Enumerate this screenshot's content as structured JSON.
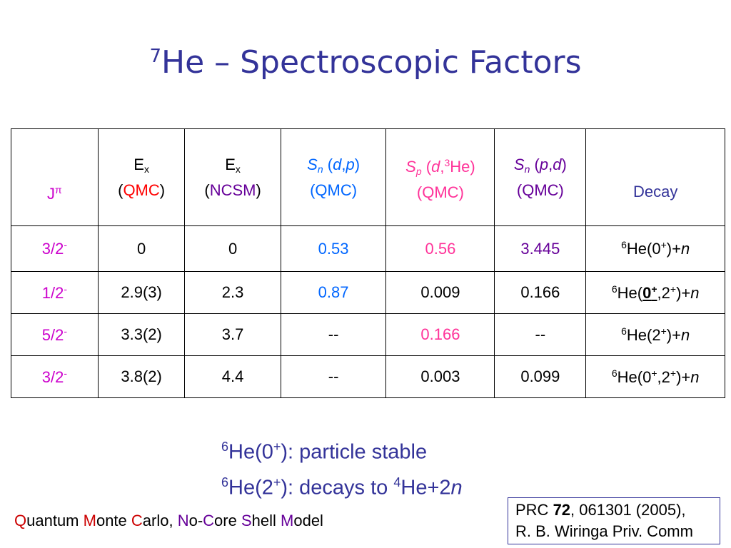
{
  "title": {
    "sup": "7",
    "text": "He – Spectroscopic Factors"
  },
  "table": {
    "header": {
      "j": "J",
      "pi": "π",
      "ex_qmc": {
        "e": "E",
        "x": "x",
        "lp": "(",
        "label": "QMC",
        "rp": ")"
      },
      "ex_ncsm": {
        "e": "E",
        "x": "x",
        "lp": "(",
        "label": "NCSM",
        "rp": ")"
      },
      "sn_dp": {
        "s": "S",
        "n": "n",
        "lp": " (",
        "d": "d",
        "comma": ",",
        "p": "p",
        "rp": ")",
        "line2": "(QMC)"
      },
      "sp_d3he": {
        "s": "S",
        "p": "p",
        "lp": " (",
        "d": "d",
        "comma": ",",
        "three": "3",
        "he": "He)",
        "line2": "(QMC)"
      },
      "sn_pd": {
        "s": "S",
        "n": "n",
        "lp": " (",
        "p": "p",
        "comma": ",",
        "d": "d",
        "rp": ")",
        "line2": "(QMC)"
      },
      "decay": "Decay"
    },
    "rows": [
      {
        "j": "3/2",
        "sign": "-",
        "ex_qmc": "0",
        "ex_ncsm": "0",
        "sn_dp": "0.53",
        "sp": "0.56",
        "sn_pd": "3.445",
        "decay": {
          "mass": "6",
          "he": "He(0",
          "sup": "+",
          "rest": ")+",
          "n": "n"
        }
      },
      {
        "j": "1/2",
        "sign": "-",
        "ex_qmc": "2.9(3)",
        "ex_ncsm": "2.3",
        "sn_dp": "0.87",
        "sp": "0.009",
        "sn_pd": "0.166",
        "decay": {
          "mass": "6",
          "he": "He(",
          "bold": "0",
          "boldsup": "+",
          "mid": ",2",
          "sup": "+",
          "rest": ")+",
          "n": "n"
        }
      },
      {
        "j": "5/2",
        "sign": "-",
        "ex_qmc": "3.3(2)",
        "ex_ncsm": "3.7",
        "sn_dp": "--",
        "sp": "0.166",
        "sn_pd": "--",
        "decay": {
          "mass": "6",
          "he": "He(2",
          "sup": "+",
          "rest": ")+",
          "n": "n"
        }
      },
      {
        "j": "3/2",
        "sign": "-",
        "ex_qmc": "3.8(2)",
        "ex_ncsm": "4.4",
        "sn_dp": "--",
        "sp": "0.003",
        "sn_pd": "0.099",
        "decay": {
          "mass": "6",
          "he": "He(0",
          "sup1": "+",
          "mid": ",2",
          "sup": "+",
          "rest": ")+",
          "n": "n"
        }
      }
    ]
  },
  "notes": {
    "line1": {
      "mass": "6",
      "he": "He(0",
      "sup": "+",
      "rest": "): particle stable"
    },
    "line2": {
      "mass": "6",
      "he": "He(2",
      "sup": "+",
      "rest": "): decays to ",
      "mass2": "4",
      "he2": "He+2",
      "n": "n"
    }
  },
  "footer": {
    "q": "Q",
    "uantum": "uantum ",
    "m": "M",
    "onte": "onte ",
    "c": "C",
    "arlo": "arlo, ",
    "n": "N",
    "o": "o-",
    "c2": "C",
    "ore": "ore ",
    "s": "S",
    "hell": "hell ",
    "m2": "M",
    "odel": "odel"
  },
  "reference": {
    "prc": "PRC ",
    "vol": "72",
    "rest": ", 061301 (2005),",
    "line2": "R. B. Wiringa Priv. Comm"
  },
  "colors": {
    "title": "#333399",
    "magenta": "#cc00cc",
    "red": "#ff0000",
    "purple": "#660099",
    "blue": "#0066ff",
    "pink": "#ff3399"
  }
}
